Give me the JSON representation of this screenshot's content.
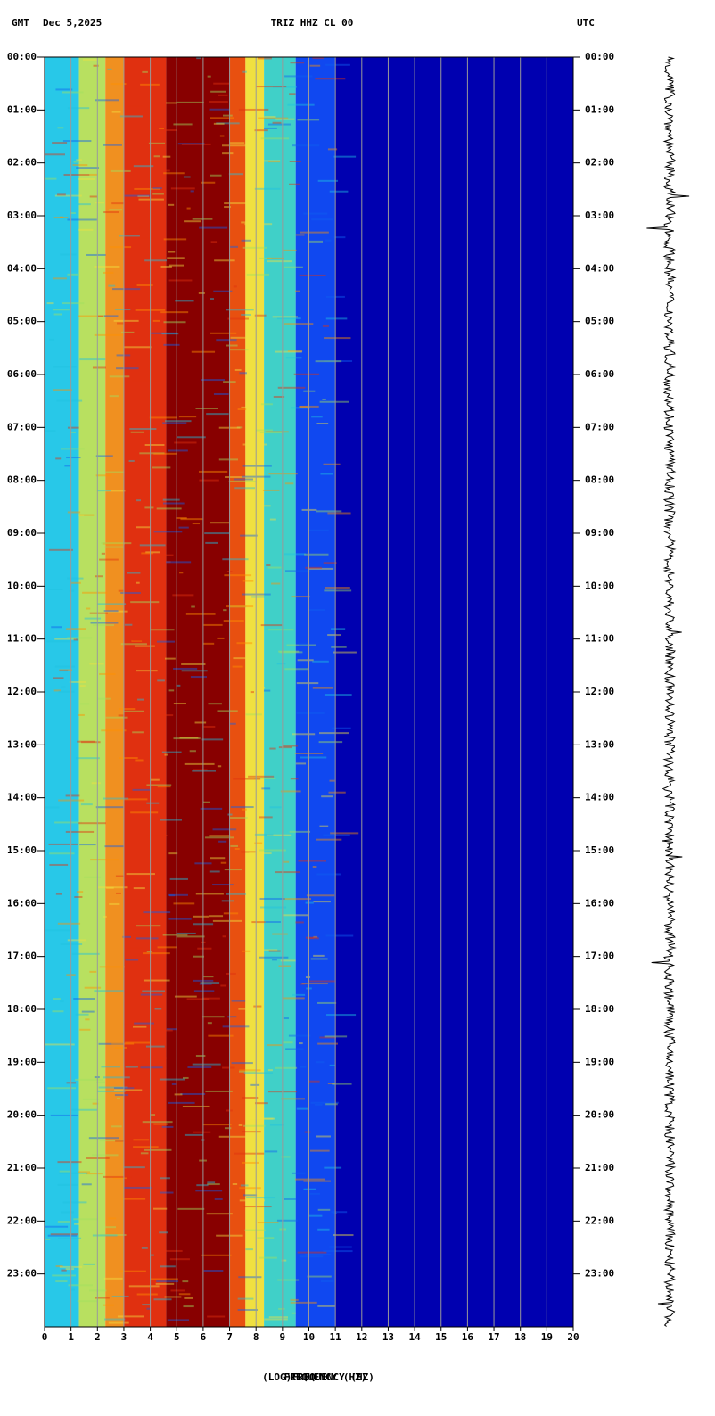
{
  "chart_data": {
    "type": "spectrogram",
    "timezone_left": "GMT",
    "date": "Dec 5,2025",
    "title": "TRIZ HHZ CL 00",
    "timezone_right": "UTC",
    "x_label": "(LOG)FREQUENCY (HZ)",
    "x_label_overlay": "FREQUENCY (HZ)",
    "xlim": [
      0,
      20
    ],
    "xticks": [
      0,
      1,
      2,
      3,
      4,
      5,
      6,
      7,
      8,
      9,
      10,
      11,
      12,
      13,
      14,
      15,
      16,
      17,
      18,
      19,
      20
    ],
    "ylim": [
      0,
      24
    ],
    "yticks": [
      {
        "value": 0,
        "label": "00:00"
      },
      {
        "value": 1,
        "label": "01:00"
      },
      {
        "value": 2,
        "label": "02:00"
      },
      {
        "value": 3,
        "label": "03:00"
      },
      {
        "value": 4,
        "label": "04:00"
      },
      {
        "value": 5,
        "label": "05:00"
      },
      {
        "value": 6,
        "label": "06:00"
      },
      {
        "value": 7,
        "label": "07:00"
      },
      {
        "value": 8,
        "label": "08:00"
      },
      {
        "value": 9,
        "label": "09:00"
      },
      {
        "value": 10,
        "label": "10:00"
      },
      {
        "value": 11,
        "label": "11:00"
      },
      {
        "value": 12,
        "label": "12:00"
      },
      {
        "value": 13,
        "label": "13:00"
      },
      {
        "value": 14,
        "label": "14:00"
      },
      {
        "value": 15,
        "label": "15:00"
      },
      {
        "value": 16,
        "label": "16:00"
      },
      {
        "value": 17,
        "label": "17:00"
      },
      {
        "value": 18,
        "label": "18:00"
      },
      {
        "value": 19,
        "label": "19:00"
      },
      {
        "value": 20,
        "label": "20:00"
      },
      {
        "value": 21,
        "label": "21:00"
      },
      {
        "value": 22,
        "label": "22:00"
      },
      {
        "value": 23,
        "label": "23:00"
      }
    ],
    "bands": [
      {
        "from": 0,
        "to": 1.3,
        "color": "#28c8e8"
      },
      {
        "from": 1.3,
        "to": 2.3,
        "color": "#b8e060"
      },
      {
        "from": 2.3,
        "to": 3,
        "color": "#f09020"
      },
      {
        "from": 3,
        "to": 4.6,
        "color": "#e03010"
      },
      {
        "from": 4.6,
        "to": 7,
        "color": "#880000"
      },
      {
        "from": 7,
        "to": 7.6,
        "color": "#e85010"
      },
      {
        "from": 7.6,
        "to": 8.3,
        "color": "#f0e040"
      },
      {
        "from": 8.3,
        "to": 9.5,
        "color": "#40d0c8"
      },
      {
        "from": 9.5,
        "to": 11,
        "color": "#1048f0"
      },
      {
        "from": 11,
        "to": 20,
        "color": "#0000b0"
      }
    ]
  }
}
